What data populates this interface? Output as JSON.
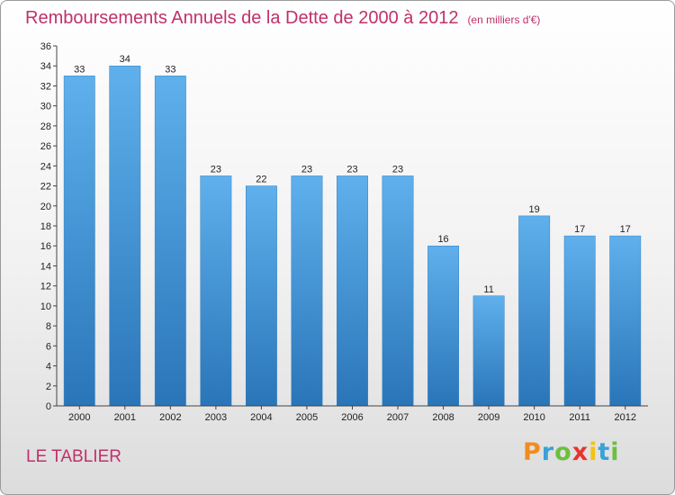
{
  "header": {
    "title": "Remboursements Annuels de la Dette de 2000 à 2012",
    "subtitle": "(en milliers d'€)"
  },
  "town": "LE TABLIER",
  "logo": {
    "letters": [
      "P",
      "r",
      "o",
      "x",
      "i",
      "t",
      "i"
    ],
    "colors": [
      "#f28c1e",
      "#3aa0d8",
      "#6cbf3f",
      "#e8342c",
      "#f2c318",
      "#3aa0d8",
      "#6cbf3f"
    ]
  },
  "chart_data": {
    "type": "bar",
    "title": "Remboursements Annuels de la Dette de 2000 à 2012",
    "categories": [
      "2000",
      "2001",
      "2002",
      "2003",
      "2004",
      "2005",
      "2006",
      "2007",
      "2008",
      "2009",
      "2010",
      "2011",
      "2012"
    ],
    "values": [
      33,
      34,
      33,
      23,
      22,
      23,
      23,
      23,
      16,
      11,
      19,
      17,
      17
    ],
    "ylim": [
      0,
      36
    ],
    "yticks": [
      0,
      2,
      4,
      6,
      8,
      10,
      12,
      14,
      16,
      18,
      20,
      22,
      24,
      26,
      28,
      30,
      32,
      34,
      36
    ],
    "grid": false,
    "bar_color": "#4a9ee0"
  }
}
